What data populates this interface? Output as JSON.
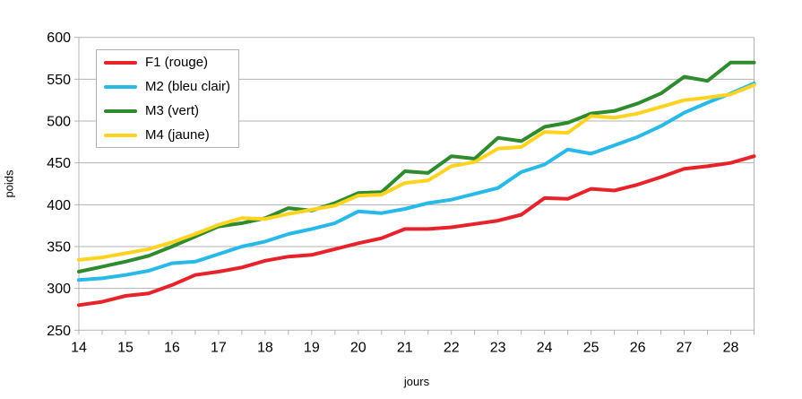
{
  "chart": {
    "xlabel": "jours",
    "ylabel": "poids"
  },
  "colors": {
    "grid": "#b3b3b3",
    "text": "#000000",
    "background": "#ffffff"
  },
  "chart_data": {
    "type": "line",
    "title": "",
    "xlabel": "jours",
    "ylabel": "poids",
    "x_start": 14,
    "x_step": 0.5,
    "xlim": [
      14,
      28.5
    ],
    "ylim": [
      250,
      600
    ],
    "x_ticks": [
      14,
      15,
      16,
      17,
      18,
      19,
      20,
      21,
      22,
      23,
      24,
      25,
      26,
      27,
      28
    ],
    "x_minor_tick_step": 0.5,
    "y_ticks": [
      250,
      300,
      350,
      400,
      450,
      500,
      550,
      600
    ],
    "grid": "horizontal-only",
    "legend_position": "top-left",
    "series": [
      {
        "name": "F1 (rouge)",
        "color": "#e8222a",
        "values": [
          280,
          284,
          291,
          294,
          304,
          316,
          320,
          325,
          333,
          338,
          340,
          347,
          354,
          360,
          371,
          371,
          373,
          377,
          381,
          388,
          408,
          407,
          419,
          417,
          424,
          433,
          443,
          446,
          450,
          458
        ]
      },
      {
        "name": "M2 (bleu clair)",
        "color": "#29b9e8",
        "values": [
          310,
          312,
          316,
          321,
          330,
          332,
          341,
          350,
          356,
          365,
          371,
          378,
          392,
          390,
          395,
          402,
          406,
          413,
          420,
          439,
          448,
          466,
          461,
          471,
          481,
          494,
          510,
          522,
          533,
          545
        ]
      },
      {
        "name": "M3 (vert)",
        "color": "#2e8b2e",
        "values": [
          320,
          326,
          332,
          339,
          350,
          362,
          374,
          378,
          384,
          396,
          393,
          402,
          414,
          415,
          440,
          438,
          458,
          455,
          480,
          476,
          493,
          498,
          509,
          512,
          521,
          533,
          553,
          548,
          570,
          570
        ]
      },
      {
        "name": "M4 (jaune)",
        "color": "#ffd320",
        "values": [
          334,
          337,
          342,
          347,
          355,
          365,
          376,
          384,
          383,
          389,
          394,
          399,
          411,
          412,
          426,
          429,
          446,
          451,
          467,
          469,
          487,
          486,
          506,
          504,
          509,
          517,
          525,
          528,
          532,
          543
        ]
      }
    ]
  }
}
